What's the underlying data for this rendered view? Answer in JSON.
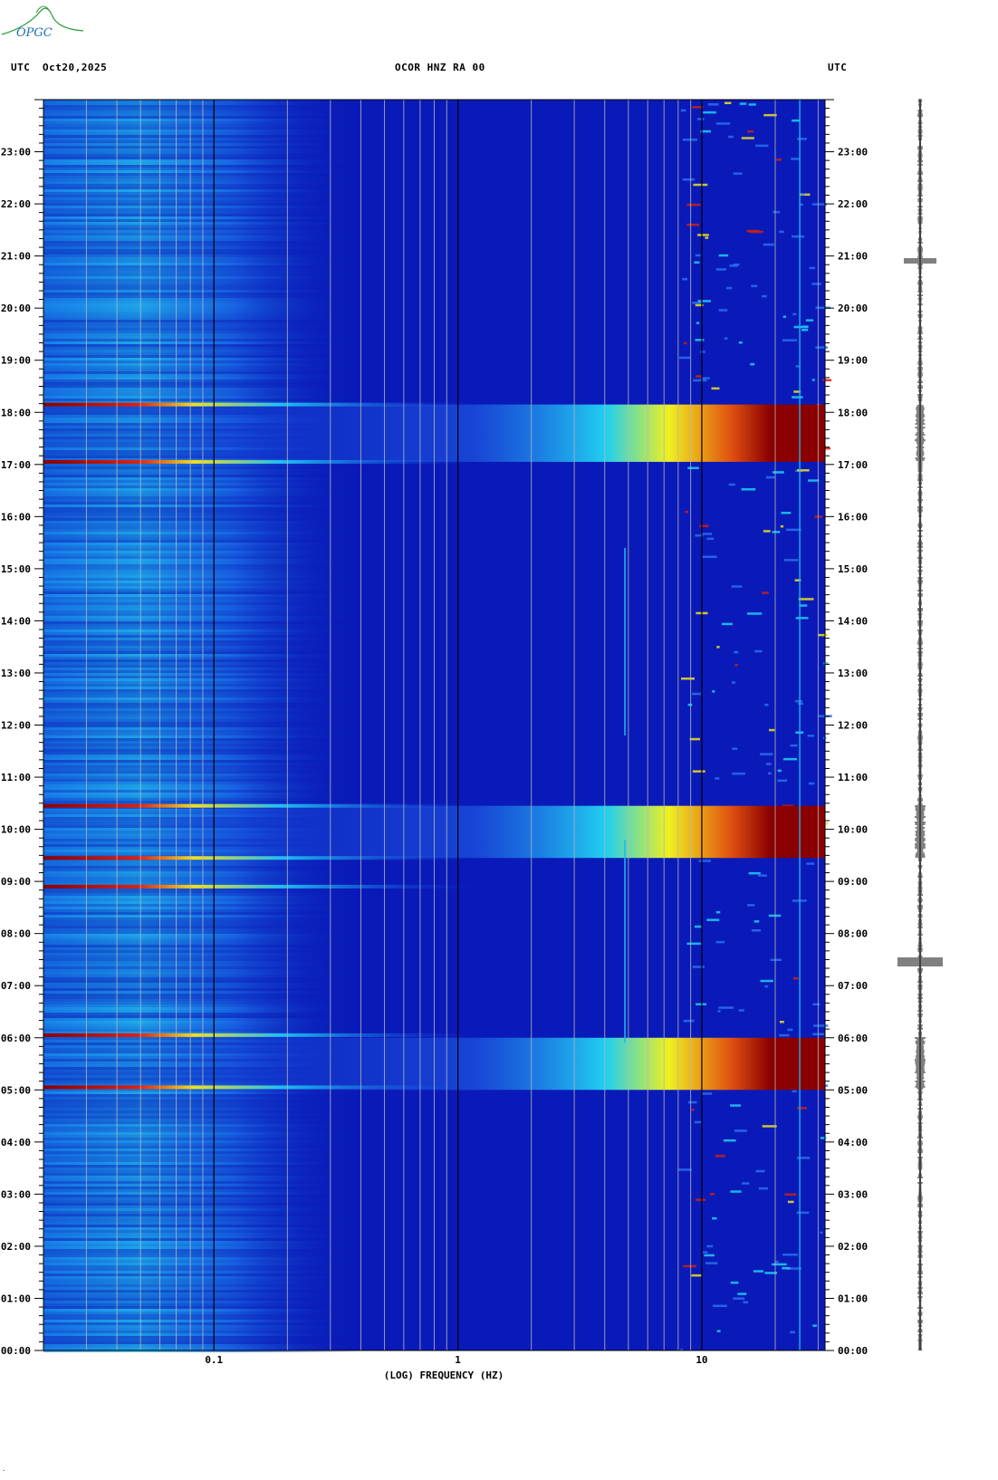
{
  "header": {
    "left_tz": "UTC",
    "date": "Oct20,2025",
    "station": "OCOR HNZ RA 00",
    "right_tz": "UTC"
  },
  "logo": {
    "text": "OPGC"
  },
  "colors": {
    "background": "#0a1ab8",
    "grid_minor": "#b8b8b8",
    "grid_major": "#000000",
    "seismogram": "#000000"
  },
  "chart_data": {
    "type": "heatmap",
    "title": "OCOR HNZ RA 00",
    "xlabel": "(LOG) FREQUENCY (HZ)",
    "ylabel": "",
    "x_scale": "log",
    "xlim": [
      0.02,
      32
    ],
    "x_tick_labels": [
      "0.1",
      "1",
      "10"
    ],
    "x_ticks": [
      0.1,
      1,
      10
    ],
    "y_unit": "hours UTC",
    "ylim": [
      0,
      24
    ],
    "y_tick_labels": [
      "00:00",
      "01:00",
      "02:00",
      "03:00",
      "04:00",
      "05:00",
      "06:00",
      "07:00",
      "08:00",
      "09:00",
      "10:00",
      "11:00",
      "12:00",
      "13:00",
      "14:00",
      "15:00",
      "16:00",
      "17:00",
      "18:00",
      "19:00",
      "20:00",
      "21:00",
      "22:00",
      "23:00"
    ],
    "y_ticks": [
      0,
      1,
      2,
      3,
      4,
      5,
      6,
      7,
      8,
      9,
      10,
      11,
      12,
      13,
      14,
      15,
      16,
      17,
      18,
      19,
      20,
      21,
      22,
      23
    ],
    "high_energy_events": [
      {
        "start_hour": 5.0,
        "end_hour": 6.0
      },
      {
        "start_hour": 9.45,
        "end_hour": 10.45
      },
      {
        "start_hour": 17.05,
        "end_hour": 18.15
      }
    ],
    "lowfreq_lines_hours": [
      5.05,
      6.05,
      8.9,
      9.45,
      10.45,
      17.05,
      18.15
    ],
    "grid": true
  }
}
